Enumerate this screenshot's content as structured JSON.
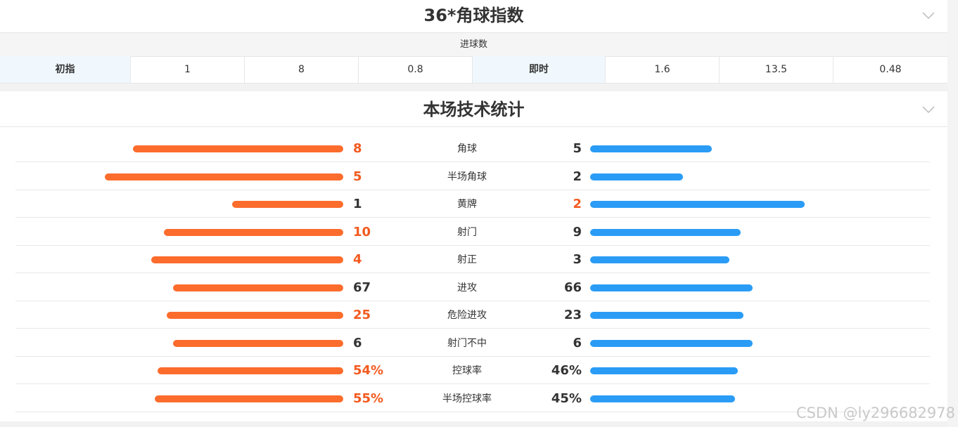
{
  "odds": {
    "title": "36*角球指数",
    "subheader": "进球数",
    "initial_label": "初指",
    "initial_values": [
      "1",
      "8",
      "0.8"
    ],
    "live_label": "即时",
    "live_values": [
      "1.6",
      "13.5",
      "0.48"
    ]
  },
  "stats": {
    "title": "本场技术统计",
    "colors": {
      "home": "#fc6c2c",
      "away": "#2a9cf6",
      "highlight": "#f25a1f"
    },
    "rows": [
      {
        "name": "角球",
        "home": "8",
        "away": "5",
        "home_bar": 0.68,
        "away_bar": 0.42,
        "highlight": "home"
      },
      {
        "name": "半场角球",
        "home": "5",
        "away": "2",
        "home_bar": 0.77,
        "away_bar": 0.32,
        "highlight": "home"
      },
      {
        "name": "黄牌",
        "home": "1",
        "away": "2",
        "home_bar": 0.36,
        "away_bar": 0.74,
        "highlight": "away"
      },
      {
        "name": "射门",
        "home": "10",
        "away": "9",
        "home_bar": 0.58,
        "away_bar": 0.52,
        "highlight": "home"
      },
      {
        "name": "射正",
        "home": "4",
        "away": "3",
        "home_bar": 0.62,
        "away_bar": 0.48,
        "highlight": "home"
      },
      {
        "name": "进攻",
        "home": "67",
        "away": "66",
        "home_bar": 0.55,
        "away_bar": 0.56,
        "highlight": "none"
      },
      {
        "name": "危险进攻",
        "home": "25",
        "away": "23",
        "home_bar": 0.57,
        "away_bar": 0.53,
        "highlight": "home"
      },
      {
        "name": "射门不中",
        "home": "6",
        "away": "6",
        "home_bar": 0.55,
        "away_bar": 0.56,
        "highlight": "none"
      },
      {
        "name": "控球率",
        "home": "54%",
        "away": "46%",
        "home_bar": 0.6,
        "away_bar": 0.51,
        "highlight": "home"
      },
      {
        "name": "半场控球率",
        "home": "55%",
        "away": "45%",
        "home_bar": 0.61,
        "away_bar": 0.5,
        "highlight": "home"
      }
    ]
  },
  "watermark": "CSDN @ly296682978"
}
